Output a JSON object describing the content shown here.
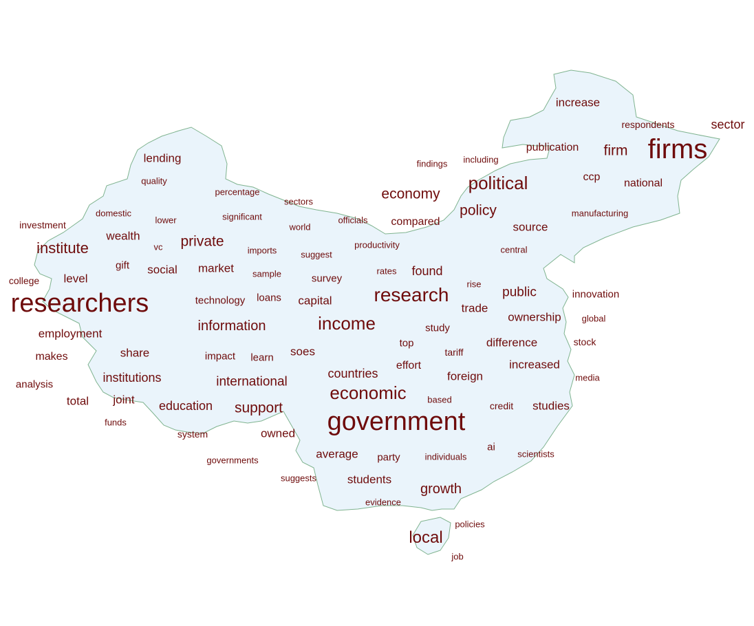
{
  "colors": {
    "word": "#6e0b0b",
    "map_fill": "#eaf4fb",
    "map_stroke": "#7fb38f",
    "background": "#ffffff"
  },
  "words": [
    {
      "text": "firms"
    },
    {
      "text": "researchers"
    },
    {
      "text": "government"
    },
    {
      "text": "research"
    },
    {
      "text": "economic"
    },
    {
      "text": "income"
    },
    {
      "text": "political"
    },
    {
      "text": "local"
    },
    {
      "text": "institute"
    },
    {
      "text": "economy"
    },
    {
      "text": "policy"
    },
    {
      "text": "firm"
    },
    {
      "text": "private"
    },
    {
      "text": "support"
    },
    {
      "text": "growth"
    },
    {
      "text": "information"
    },
    {
      "text": "public"
    },
    {
      "text": "international"
    },
    {
      "text": "countries"
    },
    {
      "text": "sector"
    },
    {
      "text": "education"
    },
    {
      "text": "institutions"
    },
    {
      "text": "found"
    },
    {
      "text": "compared"
    },
    {
      "text": "ownership"
    },
    {
      "text": "source"
    },
    {
      "text": "national"
    },
    {
      "text": "increase"
    },
    {
      "text": "publication"
    },
    {
      "text": "difference"
    },
    {
      "text": "increased"
    },
    {
      "text": "studies"
    },
    {
      "text": "capital"
    },
    {
      "text": "market"
    },
    {
      "text": "social"
    },
    {
      "text": "share"
    },
    {
      "text": "soes"
    },
    {
      "text": "owned"
    },
    {
      "text": "average"
    },
    {
      "text": "students"
    },
    {
      "text": "foreign"
    },
    {
      "text": "trade"
    },
    {
      "text": "employment"
    },
    {
      "text": "joint"
    },
    {
      "text": "total"
    },
    {
      "text": "level"
    },
    {
      "text": "wealth"
    },
    {
      "text": "lending"
    },
    {
      "text": "makes"
    },
    {
      "text": "analysis"
    },
    {
      "text": "survey"
    },
    {
      "text": "effort"
    },
    {
      "text": "study"
    },
    {
      "text": "top"
    },
    {
      "text": "party"
    },
    {
      "text": "ccp"
    },
    {
      "text": "innovation"
    },
    {
      "text": "technology"
    },
    {
      "text": "learn"
    },
    {
      "text": "impact"
    },
    {
      "text": "loans"
    },
    {
      "text": "gift"
    },
    {
      "text": "ai"
    },
    {
      "text": "system"
    },
    {
      "text": "investment"
    },
    {
      "text": "college"
    },
    {
      "text": "respondents"
    },
    {
      "text": "including"
    },
    {
      "text": "findings"
    },
    {
      "text": "manufacturing"
    },
    {
      "text": "percentage"
    },
    {
      "text": "sectors"
    },
    {
      "text": "quality"
    },
    {
      "text": "domestic"
    },
    {
      "text": "lower"
    },
    {
      "text": "significant"
    },
    {
      "text": "world"
    },
    {
      "text": "officials"
    },
    {
      "text": "vc"
    },
    {
      "text": "imports"
    },
    {
      "text": "suggest"
    },
    {
      "text": "productivity"
    },
    {
      "text": "central"
    },
    {
      "text": "sample"
    },
    {
      "text": "rates"
    },
    {
      "text": "rise"
    },
    {
      "text": "global"
    },
    {
      "text": "stock"
    },
    {
      "text": "tariff"
    },
    {
      "text": "media"
    },
    {
      "text": "based"
    },
    {
      "text": "credit"
    },
    {
      "text": "funds"
    },
    {
      "text": "governments"
    },
    {
      "text": "individuals"
    },
    {
      "text": "scientists"
    },
    {
      "text": "suggests"
    },
    {
      "text": "evidence"
    },
    {
      "text": "policies"
    },
    {
      "text": "job"
    }
  ]
}
